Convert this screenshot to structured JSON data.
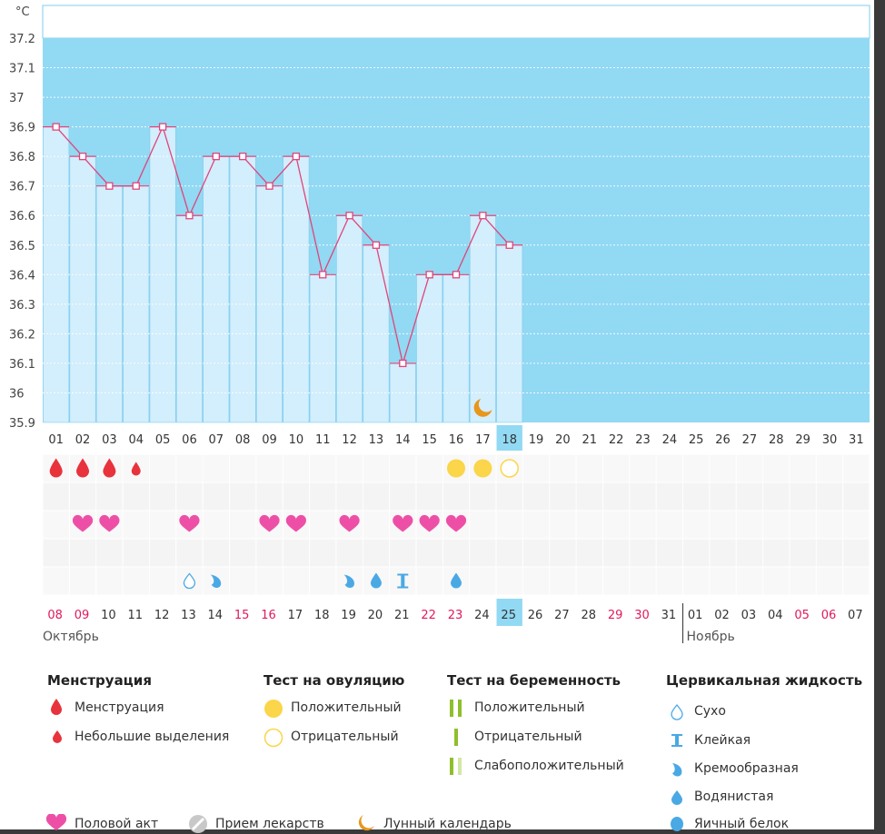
{
  "chart_data": {
    "type": "line",
    "title": "",
    "ylabel": "°C",
    "xlabel": "",
    "ylim": [
      35.9,
      37.2
    ],
    "y_ticks": [
      "37.2",
      "37.1",
      "37",
      "36.9",
      "36.8",
      "36.7",
      "36.6",
      "36.5",
      "36.4",
      "36.3",
      "36.2",
      "36.1",
      "36",
      "35.9"
    ],
    "x_ticks": [
      "01",
      "02",
      "03",
      "04",
      "05",
      "06",
      "07",
      "08",
      "09",
      "10",
      "11",
      "12",
      "13",
      "14",
      "15",
      "16",
      "17",
      "18",
      "19",
      "20",
      "21",
      "22",
      "23",
      "24",
      "25",
      "26",
      "27",
      "28",
      "29",
      "30",
      "31"
    ],
    "x": [
      "01",
      "02",
      "03",
      "04",
      "05",
      "06",
      "07",
      "08",
      "09",
      "10",
      "11",
      "12",
      "13",
      "14",
      "15",
      "16",
      "17",
      "18"
    ],
    "values": [
      36.9,
      36.8,
      36.7,
      36.7,
      36.9,
      36.6,
      36.8,
      36.8,
      36.7,
      36.8,
      36.4,
      36.6,
      36.5,
      36.1,
      36.4,
      36.4,
      36.6,
      36.5
    ],
    "highlight_cycle_day": "18",
    "grid": true,
    "legend": "bottom"
  },
  "markers": {
    "moon_day": 17,
    "menstruation": [
      {
        "day": 1,
        "kind": "large"
      },
      {
        "day": 2,
        "kind": "large"
      },
      {
        "day": 3,
        "kind": "large"
      },
      {
        "day": 4,
        "kind": "small"
      }
    ],
    "ovulation_tests": [
      {
        "day": 16,
        "result": "positive"
      },
      {
        "day": 17,
        "result": "positive"
      },
      {
        "day": 18,
        "result": "negative"
      }
    ],
    "intercourse_days": [
      2,
      3,
      6,
      9,
      10,
      12,
      14,
      15,
      16
    ],
    "cervical": [
      {
        "day": 6,
        "type": "dry"
      },
      {
        "day": 7,
        "type": "creamy"
      },
      {
        "day": 12,
        "type": "creamy"
      },
      {
        "day": 13,
        "type": "watery"
      },
      {
        "day": 14,
        "type": "sticky"
      },
      {
        "day": 16,
        "type": "watery"
      }
    ]
  },
  "calendar": {
    "dates": [
      {
        "d": "08",
        "red": true
      },
      {
        "d": "09",
        "red": true
      },
      {
        "d": "10",
        "red": false
      },
      {
        "d": "11",
        "red": false
      },
      {
        "d": "12",
        "red": false
      },
      {
        "d": "13",
        "red": false
      },
      {
        "d": "14",
        "red": false
      },
      {
        "d": "15",
        "red": true
      },
      {
        "d": "16",
        "red": true
      },
      {
        "d": "17",
        "red": false
      },
      {
        "d": "18",
        "red": false
      },
      {
        "d": "19",
        "red": false
      },
      {
        "d": "20",
        "red": false
      },
      {
        "d": "21",
        "red": false
      },
      {
        "d": "22",
        "red": true
      },
      {
        "d": "23",
        "red": true
      },
      {
        "d": "24",
        "red": false
      },
      {
        "d": "25",
        "red": false,
        "today": true
      },
      {
        "d": "26",
        "red": false
      },
      {
        "d": "27",
        "red": false
      },
      {
        "d": "28",
        "red": false
      },
      {
        "d": "29",
        "red": true
      },
      {
        "d": "30",
        "red": true
      },
      {
        "d": "31",
        "red": false
      },
      {
        "d": "01",
        "red": false
      },
      {
        "d": "02",
        "red": false
      },
      {
        "d": "03",
        "red": false
      },
      {
        "d": "04",
        "red": false
      },
      {
        "d": "05",
        "red": true
      },
      {
        "d": "06",
        "red": true
      },
      {
        "d": "07",
        "red": false
      }
    ],
    "month1": "Октябрь",
    "month2": "Ноябрь",
    "month2_start_index": 24
  },
  "legend": {
    "menstruation": {
      "title": "Менструация",
      "items": [
        "Менструация",
        "Небольшие выделения"
      ]
    },
    "ovulation": {
      "title": "Тест на овуляцию",
      "items": [
        "Положительный",
        "Отрицательный"
      ]
    },
    "pregnancy": {
      "title": "Тест на беременность",
      "items": [
        "Положительный",
        "Отрицательный",
        "Слабоположительный"
      ]
    },
    "cervical": {
      "title": "Цервикальная жидкость",
      "items": [
        "Сухо",
        "Клейкая",
        "Кремообразная",
        "Водянистая",
        "Яичный белок"
      ]
    },
    "bottom": [
      "Половой акт",
      "Прием лекарств",
      "Лунный календарь"
    ]
  },
  "colors": {
    "plot_bg": "#92d9f3",
    "bar": "#d3eefc",
    "bar_edge": "#7fcdee",
    "line": "#e0457b",
    "drop": "#e8333c",
    "sun": "#fbd54a",
    "heart": "#ee4fa6",
    "cervical": "#4aa9e5",
    "green": "#8fbf2c",
    "green_light": "#d4e6a8",
    "moon": "#e8961c",
    "red_date": "#e0185f"
  }
}
